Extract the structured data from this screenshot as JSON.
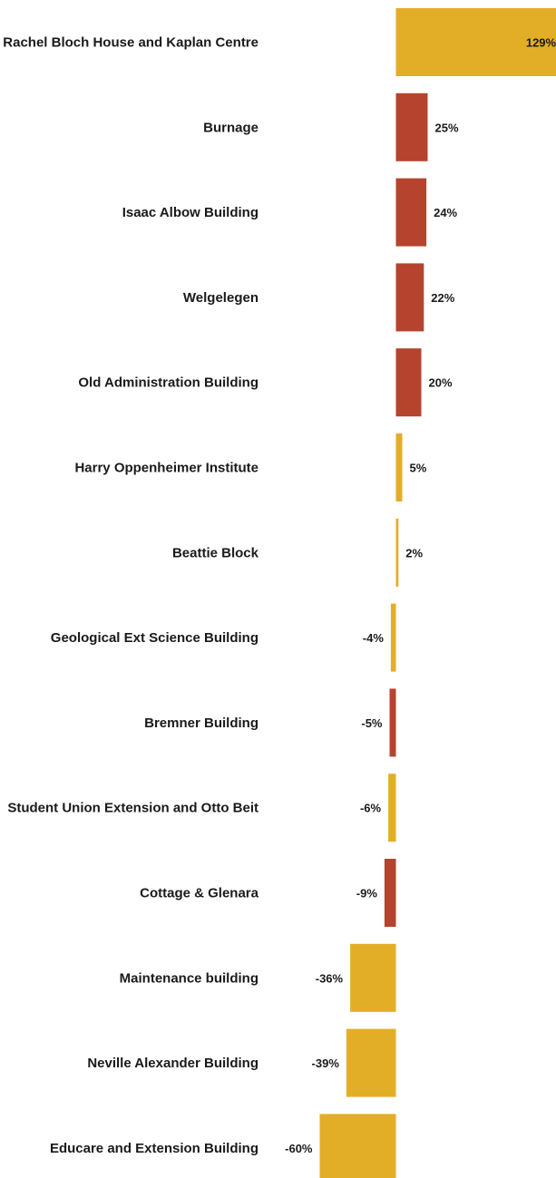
{
  "colors": {
    "gold": "#e3ae27",
    "red": "#b5432d",
    "label_text": "#1a1a1a",
    "background": "#ffffff"
  },
  "chart_data": {
    "type": "bar",
    "orientation": "horizontal",
    "title": "",
    "xlabel": "",
    "ylabel": "",
    "grid": false,
    "legend": "none",
    "xlim": [
      -60,
      129
    ],
    "categories": [
      "Rachel Bloch House and Kaplan Centre",
      "Burnage",
      "Isaac Albow Building",
      "Welgelegen",
      "Old Administration Building",
      "Harry Oppenheimer Institute",
      "Beattie Block",
      "Geological Ext Science Building",
      "Bremner Building",
      "Student Union Extension and Otto Beit",
      "Cottage & Glenara",
      "Maintenance building",
      "Neville Alexander Building",
      "Educare and Extension Building"
    ],
    "values": [
      129,
      25,
      24,
      22,
      20,
      5,
      2,
      -4,
      -5,
      -6,
      -9,
      -36,
      -39,
      -60
    ],
    "value_labels": [
      "129%",
      "25%",
      "24%",
      "22%",
      "20%",
      "5%",
      "2%",
      "-4%",
      "-5%",
      "-6%",
      "-9%",
      "-36%",
      "-39%",
      "-60%"
    ],
    "bar_colors": [
      "gold",
      "red",
      "red",
      "red",
      "red",
      "gold",
      "gold",
      "gold",
      "red",
      "gold",
      "red",
      "gold",
      "gold",
      "gold"
    ]
  }
}
